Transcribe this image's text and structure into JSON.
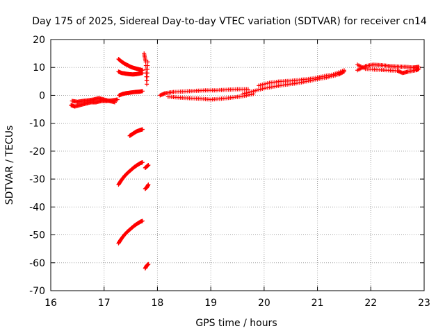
{
  "chart_data": {
    "type": "scatter",
    "title": "Day 175 of 2025, Sidereal Day-to-day VTEC variation (SDTVAR) for receiver cn14",
    "xlabel": "GPS time / hours",
    "ylabel": "SDTVAR / TECUs",
    "xlim": [
      16,
      23
    ],
    "ylim": [
      -70,
      20
    ],
    "xticks": [
      "16",
      "17",
      "18",
      "19",
      "20",
      "21",
      "22",
      "23"
    ],
    "yticks": [
      "20",
      "10",
      "0",
      "-10",
      "-20",
      "-30",
      "-40",
      "-50",
      "-60",
      "-70"
    ],
    "grid": true,
    "marker": "+",
    "color": "#ff0000",
    "series": [
      {
        "name": "early-band",
        "x": [
          16.38,
          16.45,
          16.55,
          16.65,
          16.75,
          16.85,
          16.95,
          17.05,
          17.15,
          17.25
        ],
        "y": [
          -3.5,
          -4,
          -3.5,
          -3,
          -2.5,
          -2.5,
          -2,
          -2,
          -1.8,
          -1.5
        ]
      },
      {
        "name": "early-band-upper",
        "x": [
          16.4,
          16.5,
          16.6,
          16.7,
          16.8,
          16.9,
          17.0,
          17.1,
          17.2
        ],
        "y": [
          -2,
          -2.3,
          -2,
          -1.8,
          -1.5,
          -1,
          -1.5,
          -2,
          -2.5
        ]
      },
      {
        "name": "arc-top",
        "x": [
          17.27,
          17.32,
          17.38,
          17.44,
          17.5,
          17.56,
          17.62,
          17.68,
          17.72
        ],
        "y": [
          13,
          12.2,
          11.4,
          10.8,
          10.2,
          9.8,
          9.5,
          9.2,
          9
        ]
      },
      {
        "name": "arc-mid",
        "x": [
          17.27,
          17.33,
          17.4,
          17.47,
          17.54,
          17.6,
          17.66,
          17.72
        ],
        "y": [
          8.5,
          8,
          7.8,
          7.6,
          7.5,
          7.6,
          7.8,
          8
        ]
      },
      {
        "name": "arc-zero",
        "x": [
          17.28,
          17.35,
          17.42,
          17.5,
          17.58,
          17.65,
          17.72
        ],
        "y": [
          0,
          0.5,
          0.8,
          1,
          1.2,
          1.3,
          1.5
        ]
      },
      {
        "name": "isolated-top",
        "x": [
          17.75,
          17.78,
          17.8,
          17.82
        ],
        "y": [
          15,
          12,
          4,
          12
        ]
      },
      {
        "name": "arc-minus15",
        "x": [
          17.48,
          17.52,
          17.56,
          17.6,
          17.64,
          17.68,
          17.72
        ],
        "y": [
          -14.5,
          -14,
          -13.5,
          -13,
          -12.7,
          -12.4,
          -12.2
        ]
      },
      {
        "name": "arc-minus30",
        "x": [
          17.27,
          17.32,
          17.38,
          17.44,
          17.5,
          17.56,
          17.62,
          17.68,
          17.72
        ],
        "y": [
          -32,
          -30.5,
          -29,
          -27.8,
          -26.8,
          -25.8,
          -25,
          -24.3,
          -24
        ]
      },
      {
        "name": "arc-minus25-r",
        "x": [
          17.77,
          17.8,
          17.83
        ],
        "y": [
          -26,
          -25.5,
          -25
        ]
      },
      {
        "name": "arc-minus33-r",
        "x": [
          17.77,
          17.8,
          17.83
        ],
        "y": [
          -33.5,
          -33,
          -32
        ]
      },
      {
        "name": "arc-minus50",
        "x": [
          17.27,
          17.32,
          17.38,
          17.44,
          17.5,
          17.56,
          17.62,
          17.68,
          17.72
        ],
        "y": [
          -53,
          -51.5,
          -50,
          -48.8,
          -47.8,
          -46.8,
          -46,
          -45.3,
          -45
        ]
      },
      {
        "name": "arc-minus61-r",
        "x": [
          17.77,
          17.8,
          17.83
        ],
        "y": [
          -62,
          -61,
          -60.5
        ]
      },
      {
        "name": "mid-band-a",
        "x": [
          18.05,
          18.15,
          18.3,
          18.5,
          18.7,
          18.9,
          19.1,
          19.3,
          19.5,
          19.7
        ],
        "y": [
          0,
          0.8,
          1.2,
          1.4,
          1.6,
          1.8,
          1.8,
          2,
          2.2,
          2.2
        ]
      },
      {
        "name": "mid-band-b",
        "x": [
          18.2,
          18.4,
          18.6,
          18.8,
          19.0,
          19.2,
          19.4,
          19.6,
          19.8
        ],
        "y": [
          -0.5,
          -0.8,
          -1,
          -1.2,
          -1.5,
          -1.2,
          -0.8,
          -0.3,
          0.5
        ]
      },
      {
        "name": "rise-band",
        "x": [
          19.6,
          19.8,
          20.0,
          20.2,
          20.4,
          20.6,
          20.8,
          21.0,
          21.2,
          21.4,
          21.5
        ],
        "y": [
          0.5,
          1.5,
          2.5,
          3.2,
          3.8,
          4.3,
          5,
          5.8,
          6.5,
          7.5,
          8.5
        ]
      },
      {
        "name": "rise-band-upper",
        "x": [
          19.9,
          20.1,
          20.3,
          20.5,
          20.7,
          20.9,
          21.1,
          21.3,
          21.5
        ],
        "y": [
          3.5,
          4.5,
          5,
          5.2,
          5.6,
          6,
          6.8,
          7.5,
          9
        ]
      },
      {
        "name": "late-band",
        "x": [
          21.75,
          21.9,
          22.05,
          22.2,
          22.35,
          22.5,
          22.65,
          22.8,
          22.9
        ],
        "y": [
          9,
          10.5,
          11,
          10.8,
          10.5,
          10.3,
          10.2,
          10,
          10.2
        ]
      },
      {
        "name": "late-band-lower",
        "x": [
          21.75,
          21.9,
          22.1,
          22.3,
          22.5,
          22.6,
          22.7,
          22.85,
          22.9
        ],
        "y": [
          11,
          9.5,
          9.2,
          9,
          8.8,
          8,
          8.5,
          9,
          9.5
        ]
      }
    ]
  }
}
